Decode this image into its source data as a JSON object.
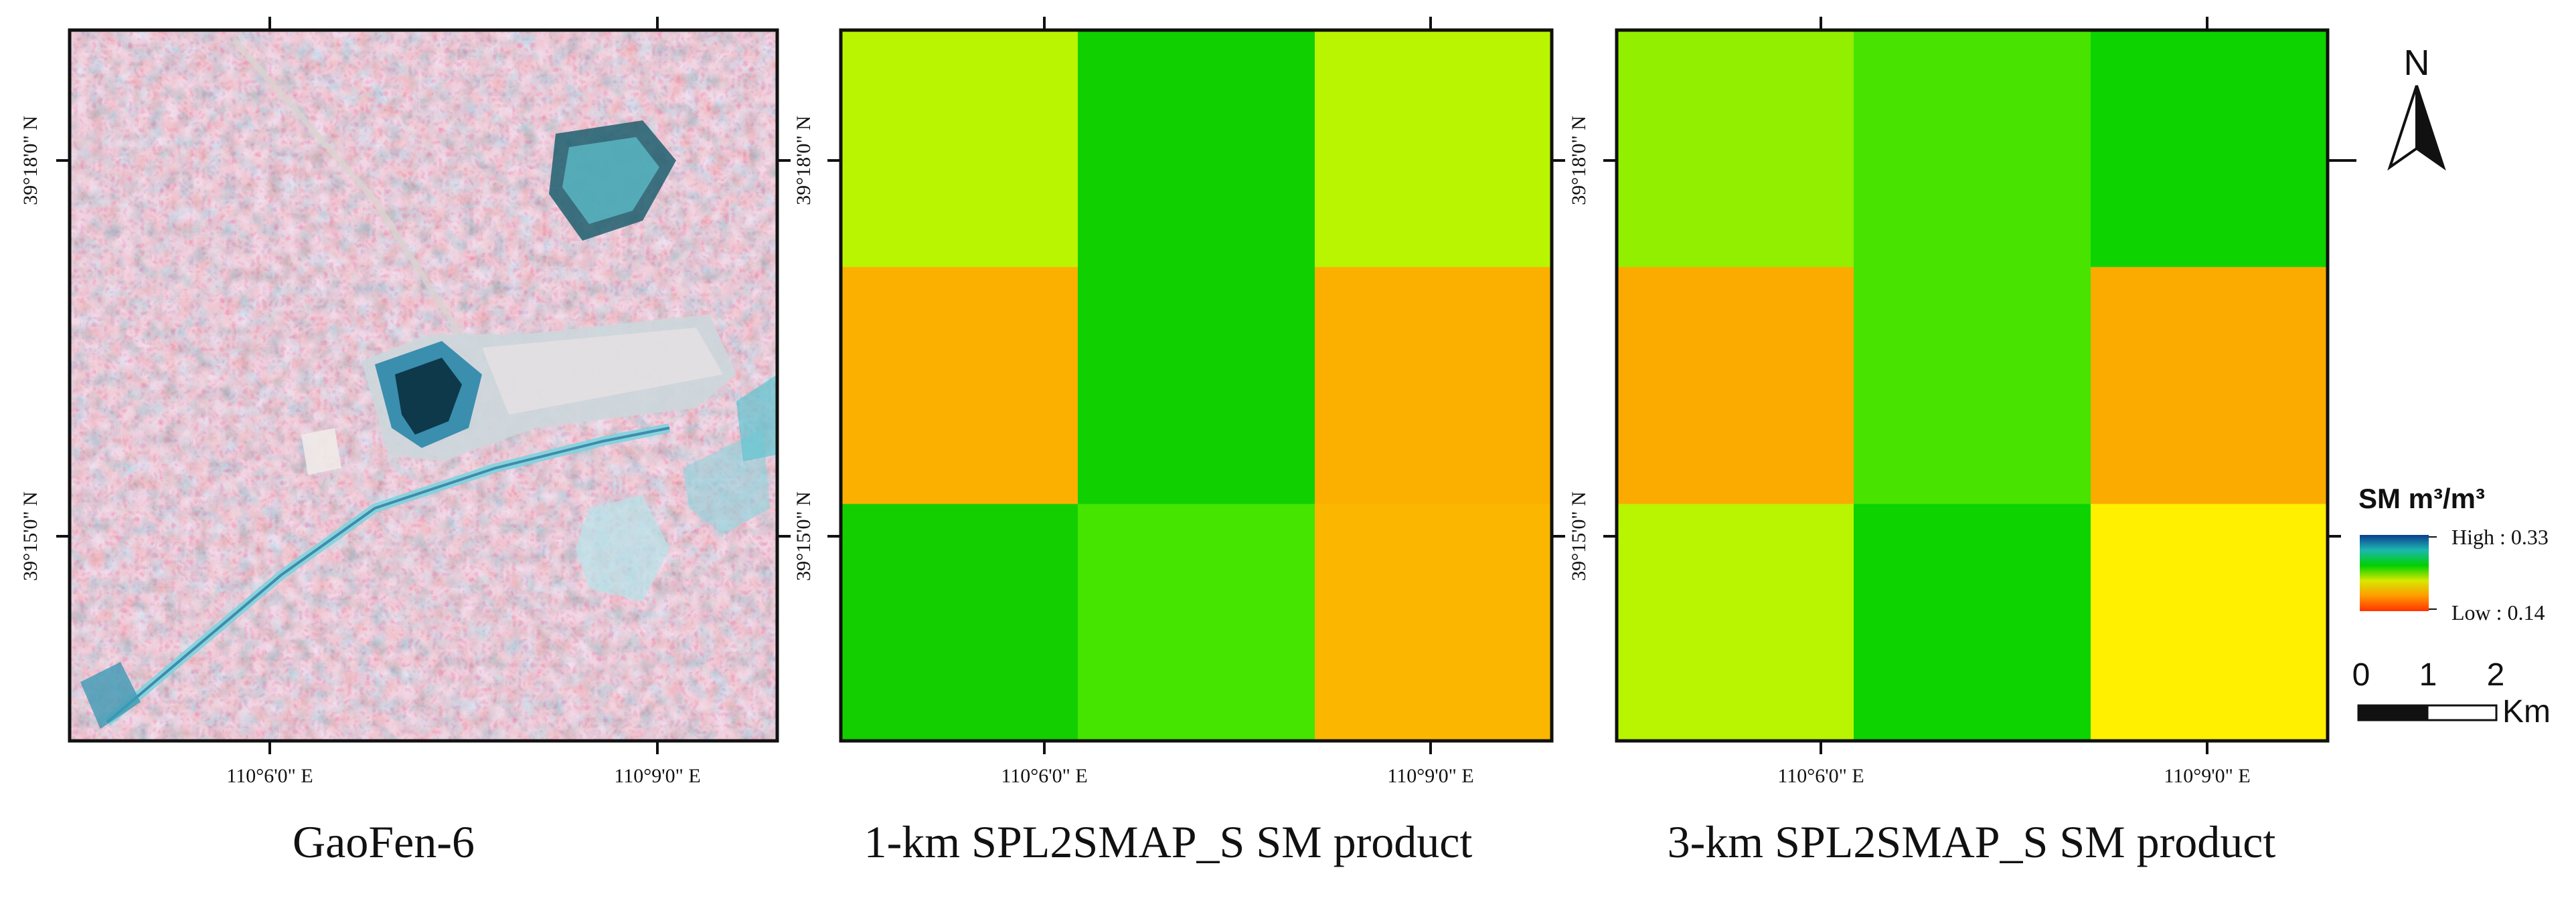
{
  "panels": [
    {
      "id": "gaofen",
      "caption": "GaoFen-6",
      "type": "satellite-image",
      "lat_labels": [
        "39°18'0\" N",
        "39°15'0\" N"
      ],
      "lon_labels": [
        "110°6'0\" E",
        "110°9'0\" E"
      ]
    },
    {
      "id": "smap1km",
      "caption": "1-km SPL2SMAP_S SM product",
      "type": "grid",
      "lat_labels": [
        "39°18'0\" N",
        "39°15'0\" N"
      ],
      "lon_labels": [
        "110°6'0\" E",
        "110°9'0\" E"
      ],
      "cells": [
        [
          "#b9f500",
          "#10d000",
          "#b9f500"
        ],
        [
          "#fbb000",
          "#10d000",
          "#fbb000"
        ],
        [
          "#13cf00",
          "#45e500",
          "#fbb700"
        ]
      ]
    },
    {
      "id": "smap3km",
      "caption": "3-km SPL2SMAP_S SM product",
      "type": "grid",
      "lat_labels": [
        "39°18'0\" N",
        "39°15'0\" N"
      ],
      "lon_labels": [
        "110°6'0\" E",
        "110°9'0\" E"
      ],
      "cells": [
        [
          "#93ef00",
          "#48e400",
          "#0dd300"
        ],
        [
          "#fbab00",
          "#48e400",
          "#fbab00"
        ],
        [
          "#b9f500",
          "#0dd300",
          "#fff000"
        ]
      ]
    }
  ],
  "legend": {
    "title": "SM m³/m³",
    "high_label": "High : 0.33",
    "low_label": "Low : 0.14",
    "gradient_colors": [
      "#0b3d8f",
      "#1cb7b0",
      "#00d000",
      "#d7e800",
      "#ff9a00",
      "#ff3300"
    ]
  },
  "scale_bar": {
    "labels": [
      "0",
      "1",
      "2"
    ],
    "unit": "Km"
  },
  "north_arrow": {
    "label": "N"
  }
}
